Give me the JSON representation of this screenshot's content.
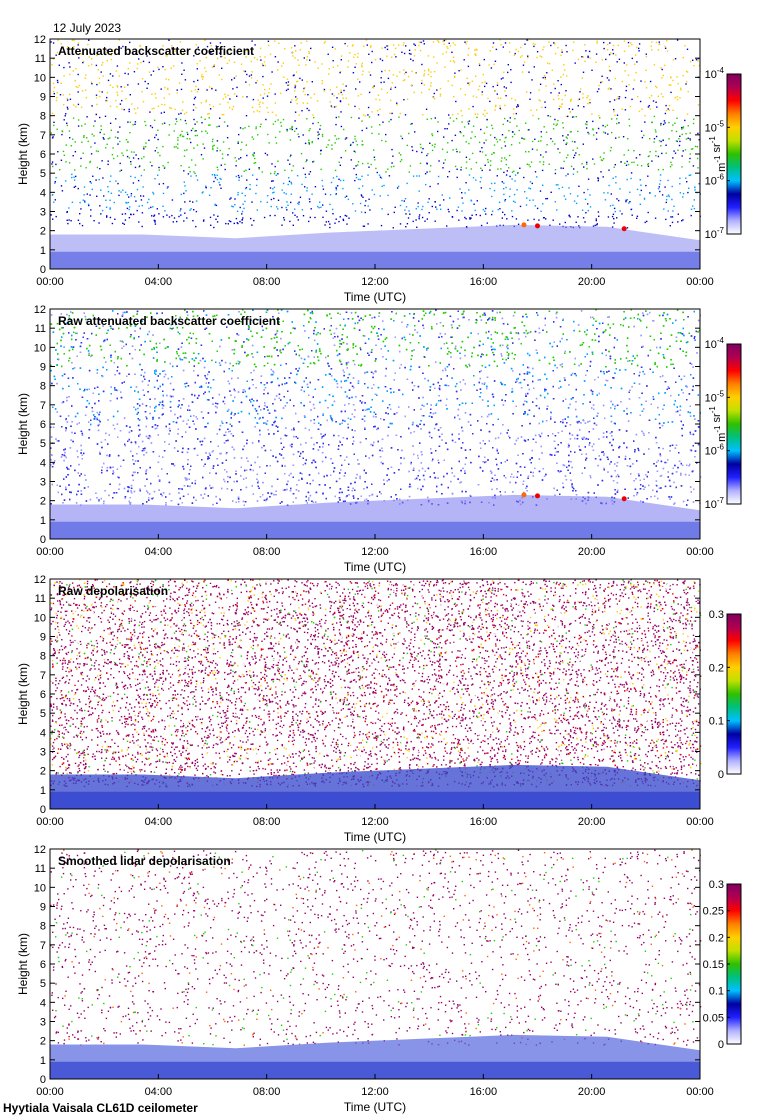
{
  "date": "12 July 2023",
  "footer": "Hyytiala Vaisala CL61D ceilometer",
  "chart_data": [
    {
      "type": "heatmap",
      "title": "Attenuated backscatter coefficient",
      "xlabel": "Time (UTC)",
      "ylabel": "Height (km)",
      "x_ticks": [
        "00:00",
        "04:00",
        "08:00",
        "12:00",
        "16:00",
        "20:00",
        "00:00"
      ],
      "y_ticks": [
        "0",
        "1",
        "2",
        "3",
        "4",
        "5",
        "6",
        "7",
        "8",
        "9",
        "10",
        "11",
        "12"
      ],
      "ylim": [
        0,
        12
      ],
      "colorbar": {
        "scale": "log",
        "ticks": [
          "10^-7",
          "10^-6",
          "10^-5",
          "10^-4"
        ],
        "unit": "m^-1 sr^-1"
      },
      "features": {
        "boundary_layer_top_km": [
          1.8,
          1.8,
          1.6,
          1.9,
          2.1,
          2.3,
          2.2,
          1.5
        ],
        "cloud_cells_km": [
          [
            17.5,
            2.3
          ],
          [
            18.0,
            2.25
          ],
          [
            21.2,
            2.1
          ]
        ]
      }
    },
    {
      "type": "heatmap",
      "title": "Raw attenuated backscatter coefficient",
      "xlabel": "Time (UTC)",
      "ylabel": "Height (km)",
      "x_ticks": [
        "00:00",
        "04:00",
        "08:00",
        "12:00",
        "16:00",
        "20:00",
        "00:00"
      ],
      "y_ticks": [
        "0",
        "1",
        "2",
        "3",
        "4",
        "5",
        "6",
        "7",
        "8",
        "9",
        "10",
        "11",
        "12"
      ],
      "ylim": [
        0,
        12
      ],
      "colorbar": {
        "scale": "log",
        "ticks": [
          "10^-7",
          "10^-6",
          "10^-5",
          "10^-4"
        ],
        "unit": "m^-1 sr^-1"
      }
    },
    {
      "type": "heatmap",
      "title": "Raw depolarisation",
      "xlabel": "Time (UTC)",
      "ylabel": "Height (km)",
      "x_ticks": [
        "00:00",
        "04:00",
        "08:00",
        "12:00",
        "16:00",
        "20:00",
        "00:00"
      ],
      "y_ticks": [
        "0",
        "1",
        "2",
        "3",
        "4",
        "5",
        "6",
        "7",
        "8",
        "9",
        "10",
        "11",
        "12"
      ],
      "ylim": [
        0,
        12
      ],
      "colorbar": {
        "scale": "linear",
        "ticks": [
          "0",
          "0.1",
          "0.2",
          "0.3"
        ],
        "unit": ""
      }
    },
    {
      "type": "heatmap",
      "title": "Smoothed lidar depolarisation",
      "xlabel": "Time (UTC)",
      "ylabel": "Height (km)",
      "x_ticks": [
        "00:00",
        "04:00",
        "08:00",
        "12:00",
        "16:00",
        "20:00",
        "00:00"
      ],
      "y_ticks": [
        "0",
        "1",
        "2",
        "3",
        "4",
        "5",
        "6",
        "7",
        "8",
        "9",
        "10",
        "11",
        "12"
      ],
      "ylim": [
        0,
        12
      ],
      "colorbar": {
        "scale": "linear",
        "ticks": [
          "0",
          "0.05",
          "0.1",
          "0.15",
          "0.2",
          "0.25",
          "0.3"
        ],
        "unit": ""
      }
    }
  ],
  "colormap": [
    "#ffffff",
    "#9999ff",
    "#3333ee",
    "#0000cc",
    "#00a0ff",
    "#00ccaa",
    "#22cc00",
    "#ccdd00",
    "#ffcc00",
    "#ff6600",
    "#ee0000",
    "#990066",
    "#660033"
  ]
}
